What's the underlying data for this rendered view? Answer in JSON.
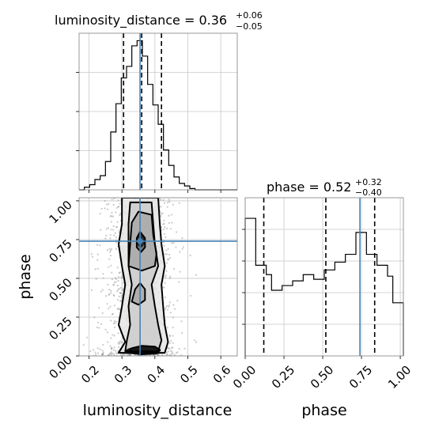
{
  "chart_data": {
    "type": "corner",
    "truth_color": "#4682b4",
    "variables": [
      "luminosity_distance",
      "phase"
    ],
    "truths": {
      "luminosity_distance": 0.355,
      "phase": 0.74
    },
    "axes": {
      "luminosity_distance": {
        "label": "luminosity_distance",
        "range": [
          0.17,
          0.65
        ],
        "ticks": [
          0.2,
          0.3,
          0.4,
          0.5,
          0.6
        ],
        "tick_labels": [
          "0.2",
          "0.3",
          "0.4",
          "0.5",
          "0.6"
        ]
      },
      "phase": {
        "label": "phase",
        "range": [
          0.0,
          1.02
        ],
        "ticks": [
          0.0,
          0.25,
          0.5,
          0.75,
          1.0
        ],
        "tick_labels": [
          "0.00",
          "0.25",
          "0.50",
          "0.75",
          "1.00"
        ]
      }
    },
    "panels": [
      {
        "name": "luminosity_distance-marginal",
        "type": "histogram",
        "variable": "luminosity_distance",
        "title": {
          "prefix": "luminosity_distance = 0.36",
          "upper": "+0.06",
          "lower": "−0.05"
        },
        "quantiles": [
          0.305,
          0.36,
          0.42
        ],
        "bin_edges": [
          0.17,
          0.186,
          0.202,
          0.218,
          0.234,
          0.25,
          0.266,
          0.282,
          0.298,
          0.314,
          0.33,
          0.346,
          0.362,
          0.378,
          0.394,
          0.41,
          0.426,
          0.442,
          0.458,
          0.474,
          0.49,
          0.506,
          0.522,
          0.538,
          0.554,
          0.57,
          0.586,
          0.602,
          0.618,
          0.634,
          0.65
        ],
        "counts": [
          0,
          2,
          4,
          8,
          11,
          22,
          45,
          67,
          87,
          96,
          112,
          116,
          104,
          82,
          66,
          51,
          31,
          19,
          10,
          5,
          3,
          1,
          0,
          0,
          0,
          0,
          0,
          0,
          0,
          0
        ],
        "max_count": 116
      },
      {
        "name": "phase-marginal",
        "type": "histogram",
        "variable": "phase",
        "title": {
          "prefix": "phase = 0.52",
          "upper": "+0.32",
          "lower": "−0.40"
        },
        "quantiles": [
          0.12,
          0.52,
          0.835
        ],
        "bin_edges": [
          0.0,
          0.034,
          0.068,
          0.102,
          0.136,
          0.17,
          0.204,
          0.238,
          0.272,
          0.306,
          0.34,
          0.374,
          0.408,
          0.442,
          0.476,
          0.51,
          0.544,
          0.578,
          0.612,
          0.646,
          0.68,
          0.714,
          0.748,
          0.782,
          0.816,
          0.85,
          0.884,
          0.918,
          0.952,
          0.986,
          1.02
        ],
        "counts": [
          88,
          88,
          58,
          58,
          52,
          42,
          42,
          45,
          45,
          48,
          48,
          52,
          52,
          49,
          49,
          55,
          55,
          60,
          60,
          65,
          65,
          79,
          79,
          65,
          65,
          58,
          58,
          51,
          34,
          34
        ],
        "max_count": 88
      },
      {
        "name": "2d-density",
        "type": "contour",
        "x": "luminosity_distance",
        "y": "phase",
        "center": [
          0.355,
          0.74
        ],
        "levels": [
          {
            "name": "level-1",
            "points": [
              [
                0.29,
                0.02
              ],
              [
                0.31,
                0.09
              ],
              [
                0.29,
                0.2
              ],
              [
                0.3,
                0.32
              ],
              [
                0.31,
                0.46
              ],
              [
                0.3,
                0.58
              ],
              [
                0.29,
                0.72
              ],
              [
                0.3,
                0.85
              ],
              [
                0.3,
                1.02
              ],
              [
                0.41,
                1.02
              ],
              [
                0.415,
                0.85
              ],
              [
                0.42,
                0.72
              ],
              [
                0.43,
                0.58
              ],
              [
                0.42,
                0.46
              ],
              [
                0.425,
                0.32
              ],
              [
                0.43,
                0.2
              ],
              [
                0.44,
                0.09
              ],
              [
                0.43,
                0.02
              ]
            ]
          },
          {
            "name": "level-2",
            "points": [
              [
                0.31,
                0.03
              ],
              [
                0.315,
                0.1
              ],
              [
                0.325,
                0.2
              ],
              [
                0.32,
                0.32
              ],
              [
                0.33,
                0.46
              ],
              [
                0.32,
                0.58
              ],
              [
                0.32,
                0.72
              ],
              [
                0.32,
                0.85
              ],
              [
                0.325,
                0.99
              ],
              [
                0.39,
                0.99
              ],
              [
                0.395,
                0.85
              ],
              [
                0.4,
                0.72
              ],
              [
                0.41,
                0.58
              ],
              [
                0.39,
                0.46
              ],
              [
                0.4,
                0.32
              ],
              [
                0.41,
                0.2
              ],
              [
                0.42,
                0.1
              ],
              [
                0.41,
                0.03
              ]
            ]
          },
          {
            "name": "level-3",
            "points": [
              [
                0.32,
                0.58
              ],
              [
                0.325,
                0.72
              ],
              [
                0.33,
                0.86
              ],
              [
                0.35,
                0.93
              ],
              [
                0.39,
                0.91
              ],
              [
                0.395,
                0.78
              ],
              [
                0.405,
                0.66
              ],
              [
                0.4,
                0.58
              ],
              [
                0.36,
                0.55
              ]
            ]
          },
          {
            "name": "level-4",
            "points": [
              [
                0.345,
                0.7
              ],
              [
                0.345,
                0.76
              ],
              [
                0.355,
                0.8
              ],
              [
                0.37,
                0.76
              ],
              [
                0.37,
                0.7
              ],
              [
                0.358,
                0.67
              ]
            ]
          },
          {
            "name": "level-5",
            "points": [
              [
                0.32,
                0.02
              ],
              [
                0.33,
                0.05
              ],
              [
                0.36,
                0.065
              ],
              [
                0.4,
                0.06
              ],
              [
                0.415,
                0.04
              ],
              [
                0.405,
                0.015
              ],
              [
                0.36,
                0.01
              ]
            ]
          },
          {
            "name": "level-6",
            "points": [
              [
                0.33,
                0.35
              ],
              [
                0.34,
                0.43
              ],
              [
                0.355,
                0.47
              ],
              [
                0.37,
                0.43
              ],
              [
                0.37,
                0.36
              ],
              [
                0.35,
                0.33
              ]
            ]
          }
        ]
      }
    ]
  }
}
